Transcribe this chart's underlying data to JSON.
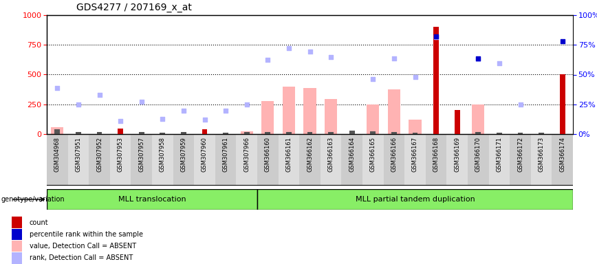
{
  "title": "GDS4277 / 207169_x_at",
  "samples": [
    "GSM304968",
    "GSM307951",
    "GSM307952",
    "GSM307953",
    "GSM307957",
    "GSM307958",
    "GSM307959",
    "GSM307960",
    "GSM307961",
    "GSM307966",
    "GSM366160",
    "GSM366161",
    "GSM366162",
    "GSM366163",
    "GSM366164",
    "GSM366165",
    "GSM366166",
    "GSM366167",
    "GSM366168",
    "GSM366169",
    "GSM366170",
    "GSM366171",
    "GSM366172",
    "GSM366173",
    "GSM366174"
  ],
  "count_values": [
    40,
    18,
    18,
    45,
    18,
    14,
    20,
    38,
    14,
    18,
    18,
    18,
    18,
    18,
    28,
    25,
    18,
    12,
    900,
    200,
    18,
    12,
    12,
    12,
    500
  ],
  "count_is_red": [
    false,
    false,
    false,
    true,
    false,
    false,
    false,
    true,
    false,
    false,
    false,
    false,
    false,
    false,
    false,
    false,
    false,
    false,
    true,
    true,
    false,
    false,
    false,
    false,
    true
  ],
  "pink_bar_values": [
    55,
    null,
    null,
    null,
    null,
    null,
    null,
    null,
    null,
    22,
    280,
    400,
    390,
    295,
    null,
    250,
    375,
    120,
    null,
    null,
    250,
    null,
    null,
    null,
    null
  ],
  "light_blue_scatter": [
    390,
    248,
    330,
    110,
    270,
    130,
    195,
    120,
    198,
    250,
    625,
    720,
    695,
    648,
    null,
    460,
    638,
    480,
    815,
    null,
    628,
    598,
    248,
    null,
    null
  ],
  "dark_blue_scatter": [
    null,
    null,
    null,
    null,
    null,
    null,
    null,
    null,
    null,
    null,
    null,
    null,
    null,
    null,
    null,
    null,
    null,
    null,
    818,
    null,
    638,
    null,
    null,
    null,
    778
  ],
  "group1_n": 10,
  "group2_n": 15,
  "group1_label": "MLL translocation",
  "group2_label": "MLL partial tandem duplication",
  "pink_color": "#ffb3b3",
  "light_blue_color": "#b3b3ff",
  "dark_red_color": "#cc0000",
  "small_bar_color": "#555555",
  "dark_blue_color": "#0000cc",
  "group_color": "#88ee66",
  "col_bg_even": "#cccccc",
  "col_bg_odd": "#dddddd"
}
